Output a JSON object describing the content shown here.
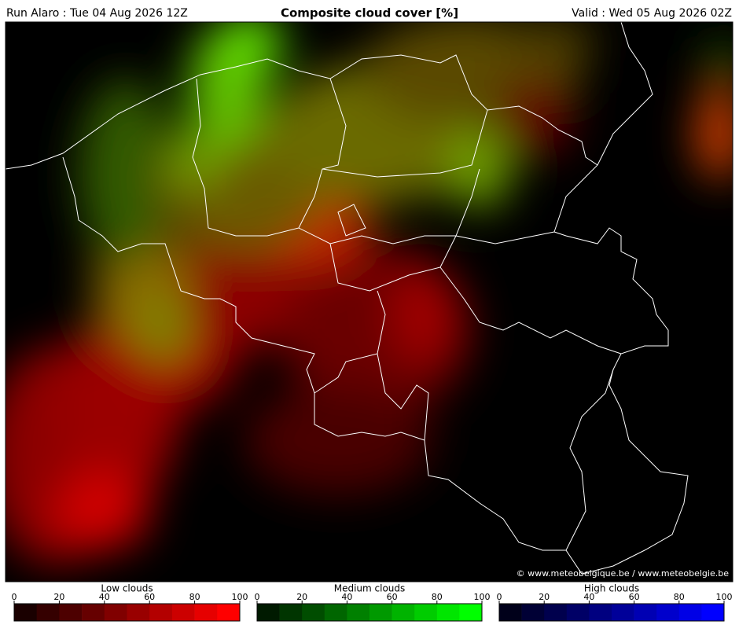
{
  "header": {
    "left": "Run Alaro : Tue 04 Aug 2026 12Z",
    "title": "Composite cloud cover [%]",
    "right": "Valid : Wed 05 Aug 2026 02Z"
  },
  "credit": "© www.meteobelgique.be / www.meteobelgie.be",
  "legends": [
    {
      "title": "Low clouds",
      "ticks": [
        0,
        20,
        40,
        60,
        80,
        100
      ],
      "colors": [
        "#1a0000",
        "#350000",
        "#4d0000",
        "#660000",
        "#800000",
        "#990000",
        "#b30000",
        "#cc0000",
        "#e60000",
        "#ff0000"
      ]
    },
    {
      "title": "Medium clouds",
      "ticks": [
        0,
        20,
        40,
        60,
        80,
        100
      ],
      "colors": [
        "#001a00",
        "#003500",
        "#004d00",
        "#006600",
        "#008000",
        "#009900",
        "#00b300",
        "#00cc00",
        "#00e600",
        "#00ff00"
      ]
    },
    {
      "title": "High clouds",
      "ticks": [
        0,
        20,
        40,
        60,
        80,
        100
      ],
      "colors": [
        "#00001a",
        "#000035",
        "#00004d",
        "#000066",
        "#000080",
        "#000099",
        "#0000b3",
        "#0000cc",
        "#0000e6",
        "#0000ff"
      ]
    }
  ]
}
